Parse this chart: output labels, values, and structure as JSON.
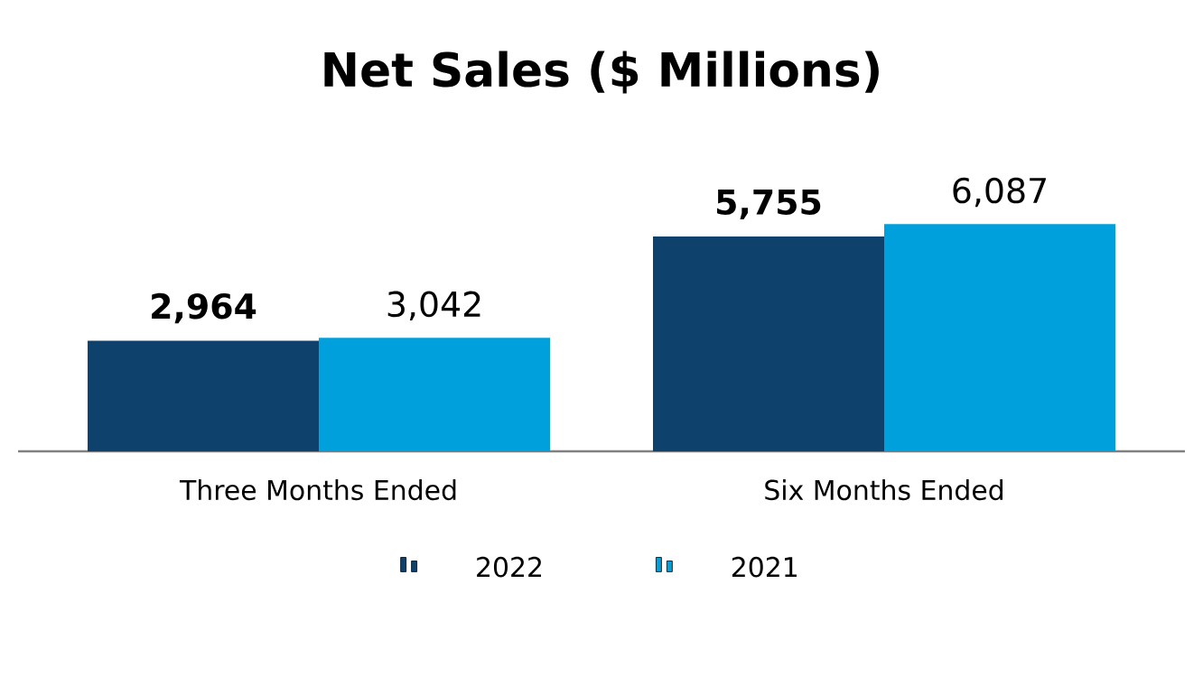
{
  "chart_data": {
    "type": "bar",
    "title": "Net Sales ($ Millions)",
    "categories": [
      "Three Months Ended",
      "Six Months Ended"
    ],
    "series": [
      {
        "name": "2022",
        "color": "#0e416b",
        "values": [
          2964,
          5755
        ],
        "value_labels": [
          "**2,964**",
          "**5,755**"
        ]
      },
      {
        "name": "2021",
        "color": "#00a0dc",
        "values": [
          3042,
          6087
        ],
        "value_labels": [
          "3,042",
          "6,087"
        ]
      }
    ],
    "legend": "bottom"
  }
}
